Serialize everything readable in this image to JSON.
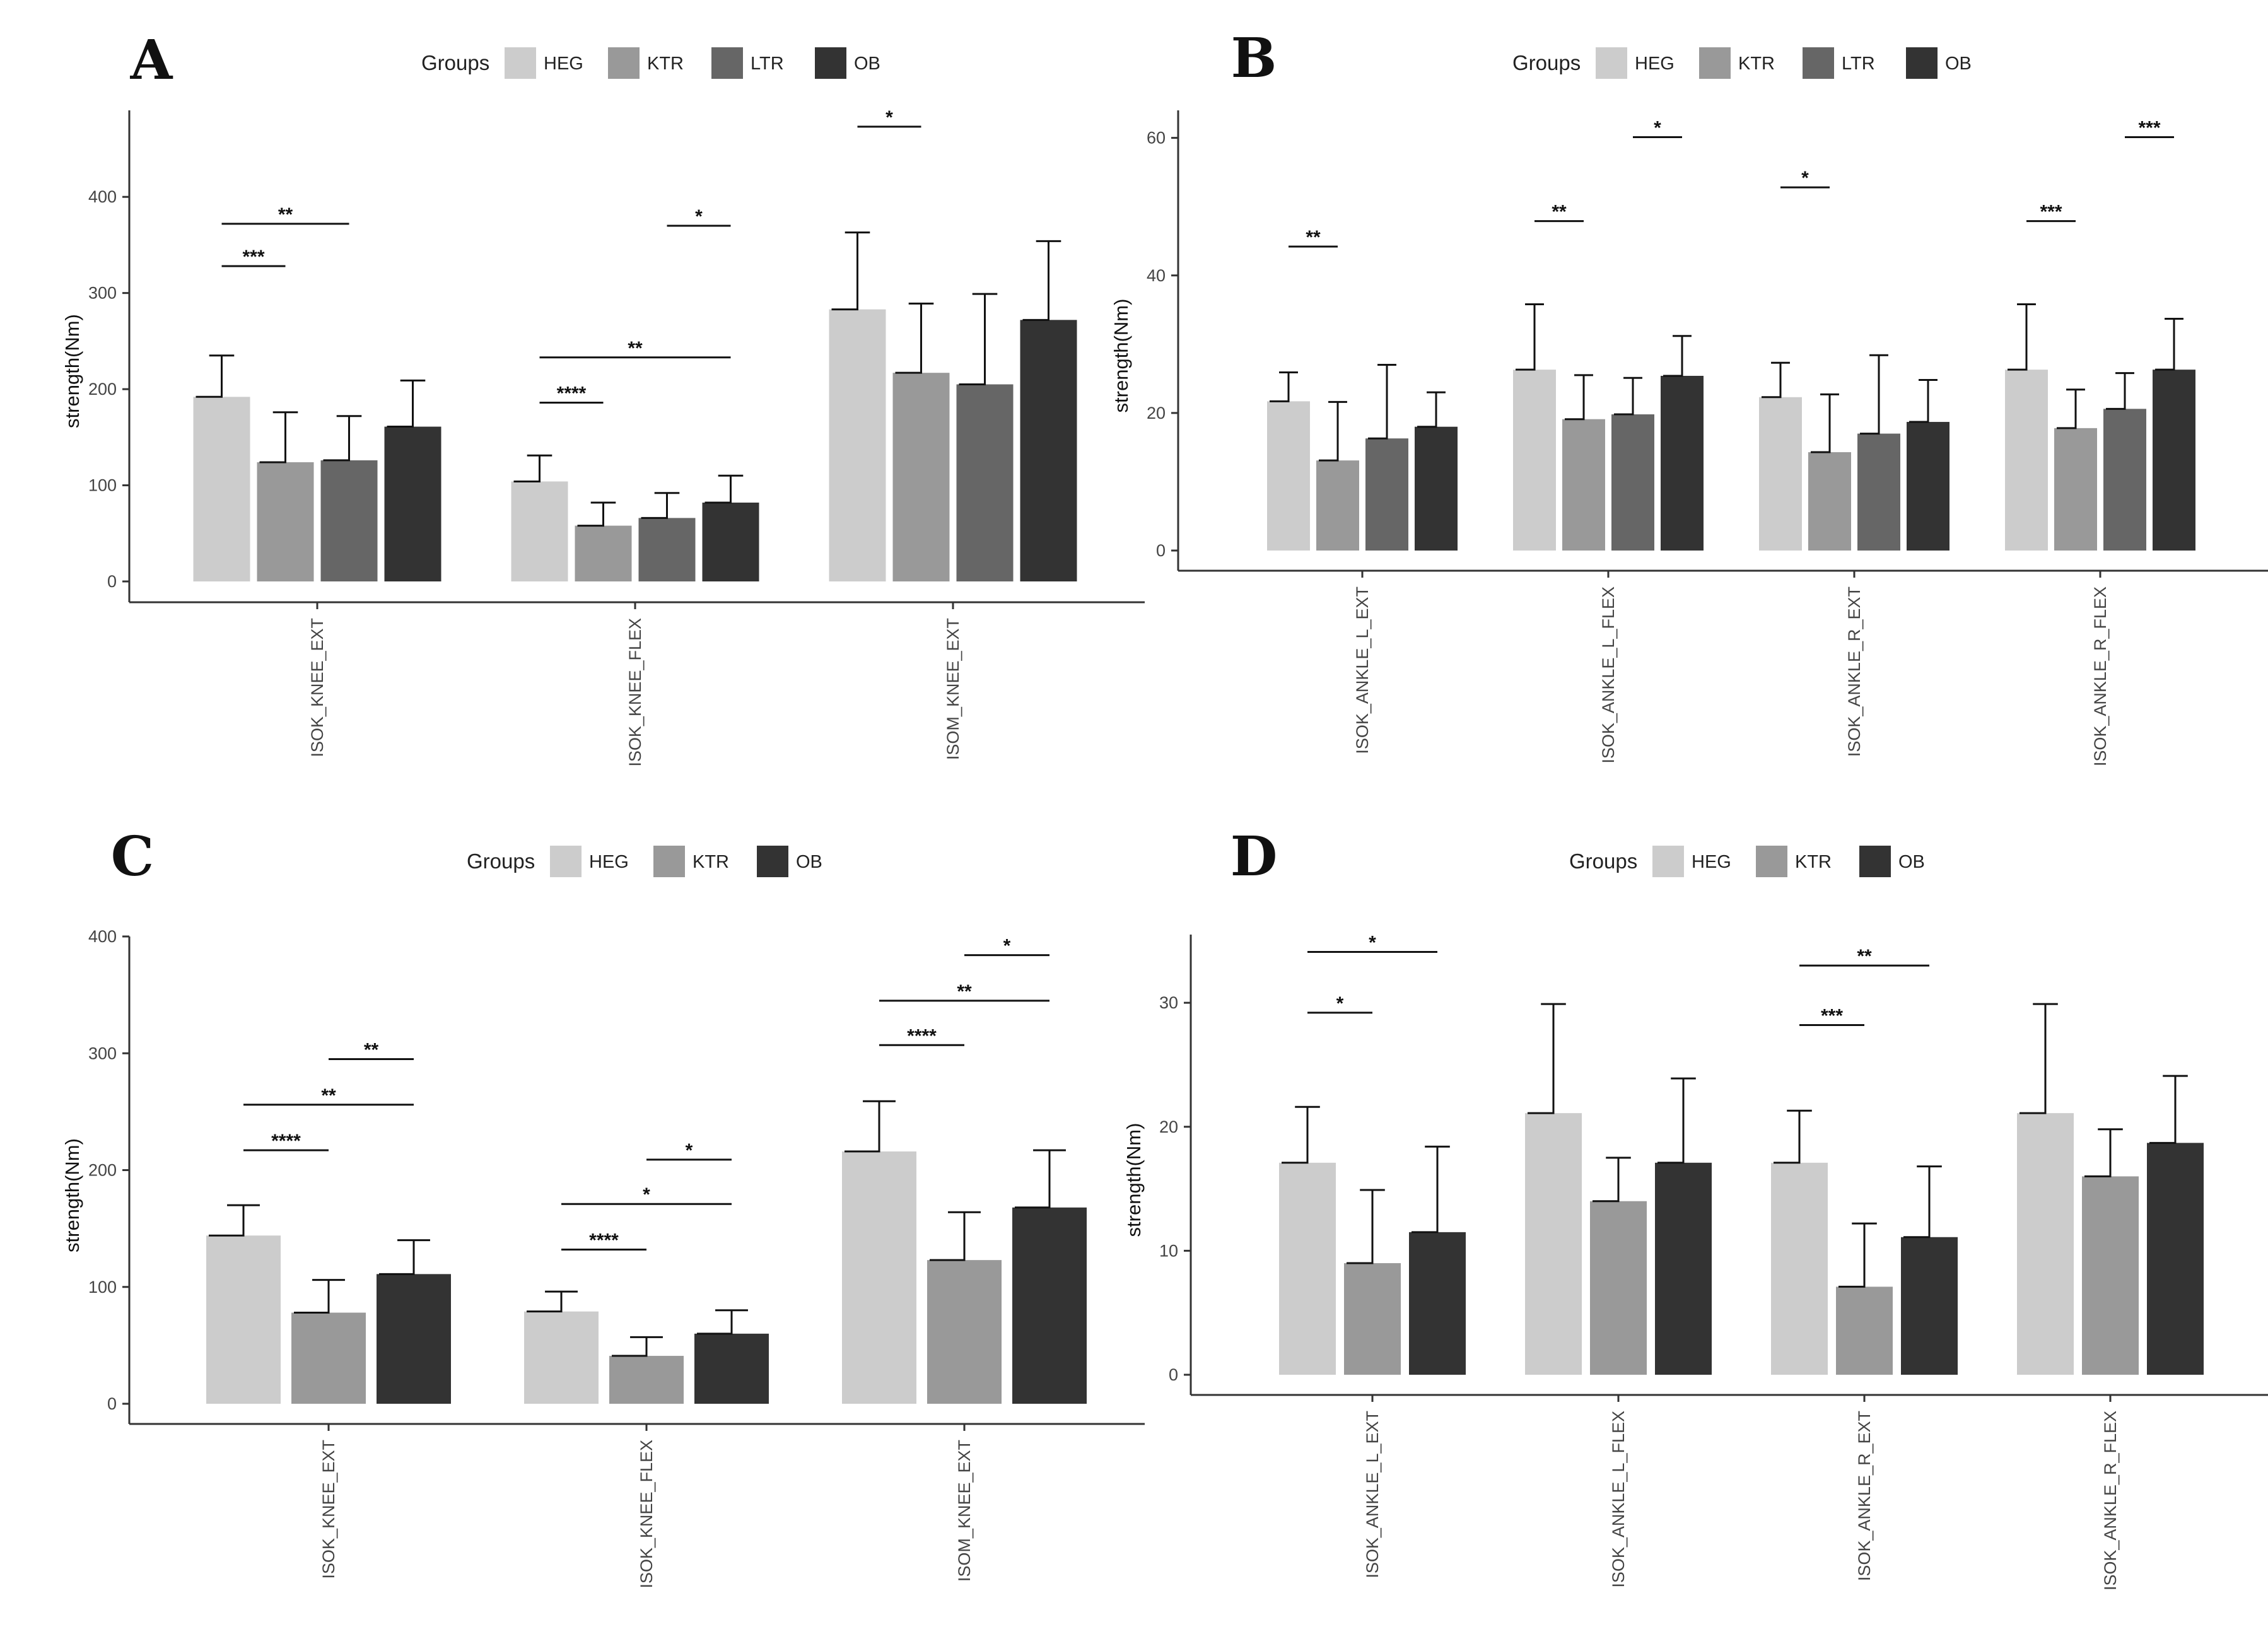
{
  "colors": {
    "HEG": "#cccccc",
    "KTR": "#999999",
    "LTR": "#666666",
    "OB": "#333333"
  },
  "chart_data": [
    {
      "panel": "A",
      "type": "bar",
      "legend_title": "Groups",
      "legend_position": "top",
      "groups": [
        "HEG",
        "KTR",
        "LTR",
        "OB"
      ],
      "categories": [
        "ISOK_KNEE_EXT",
        "ISOK_KNEE_FLEX",
        "ISOM_KNEE_EXT"
      ],
      "ylabel": "strength(Nm)",
      "xlabel": "",
      "ylim": [
        0,
        490
      ],
      "yticks": [
        0,
        100,
        200,
        300,
        400
      ],
      "series": [
        {
          "name": "HEG",
          "values": [
            192,
            104,
            283
          ],
          "errors": [
            43,
            27,
            80
          ]
        },
        {
          "name": "KTR",
          "values": [
            124,
            58,
            217
          ],
          "errors": [
            52,
            24,
            72
          ]
        },
        {
          "name": "LTR",
          "values": [
            126,
            66,
            205
          ],
          "errors": [
            46,
            26,
            94
          ]
        },
        {
          "name": "OB",
          "values": [
            161,
            82,
            272
          ],
          "errors": [
            48,
            28,
            82
          ]
        }
      ],
      "significance": [
        {
          "category": 0,
          "from": "HEG",
          "to": "KTR",
          "y": 328,
          "label": "***"
        },
        {
          "category": 0,
          "from": "HEG",
          "to": "LTR",
          "y": 372,
          "label": "**"
        },
        {
          "category": 1,
          "from": "HEG",
          "to": "KTR",
          "y": 186,
          "label": "****"
        },
        {
          "category": 1,
          "from": "HEG",
          "to": "OB",
          "y": 233,
          "label": "**"
        },
        {
          "category": 1,
          "from": "LTR",
          "to": "OB",
          "y": 370,
          "label": "*"
        },
        {
          "category": 2,
          "from": "HEG",
          "to": "KTR",
          "y": 473,
          "label": "*"
        }
      ]
    },
    {
      "panel": "B",
      "type": "bar",
      "legend_title": "Groups",
      "legend_position": "top",
      "groups": [
        "HEG",
        "KTR",
        "LTR",
        "OB"
      ],
      "categories": [
        "ISOK_ANKLE_L_EXT",
        "ISOK_ANKLE_L_FLEX",
        "ISOK_ANKLE_R_EXT",
        "ISOK_ANKLE_R_FLEX"
      ],
      "ylabel": "strength(Nm)",
      "xlabel": "",
      "ylim": [
        0,
        64
      ],
      "yticks": [
        0,
        20,
        40,
        60
      ],
      "series": [
        {
          "name": "HEG",
          "values": [
            21.7,
            26.3,
            22.3,
            26.3
          ],
          "errors": [
            4.2,
            9.5,
            5.0,
            9.5
          ]
        },
        {
          "name": "KTR",
          "values": [
            13.1,
            19.1,
            14.3,
            17.8
          ],
          "errors": [
            8.5,
            6.4,
            8.4,
            5.6
          ]
        },
        {
          "name": "LTR",
          "values": [
            16.3,
            19.8,
            17.0,
            20.6
          ],
          "errors": [
            10.7,
            5.3,
            11.4,
            5.2
          ]
        },
        {
          "name": "OB",
          "values": [
            18.0,
            25.4,
            18.7,
            26.3
          ],
          "errors": [
            5.0,
            5.8,
            6.1,
            7.4
          ]
        }
      ],
      "significance": [
        {
          "category": 0,
          "from": "HEG",
          "to": "KTR",
          "y": 44.2,
          "label": "**"
        },
        {
          "category": 1,
          "from": "HEG",
          "to": "KTR",
          "y": 47.9,
          "label": "**"
        },
        {
          "category": 1,
          "from": "LTR",
          "to": "OB",
          "y": 60.1,
          "label": "*"
        },
        {
          "category": 2,
          "from": "HEG",
          "to": "KTR",
          "y": 52.8,
          "label": "*"
        },
        {
          "category": 3,
          "from": "HEG",
          "to": "KTR",
          "y": 47.9,
          "label": "***"
        },
        {
          "category": 3,
          "from": "LTR",
          "to": "OB",
          "y": 60.1,
          "label": "***"
        }
      ]
    },
    {
      "panel": "C",
      "type": "bar",
      "legend_title": "Groups",
      "legend_position": "top",
      "groups": [
        "HEG",
        "KTR",
        "OB"
      ],
      "categories": [
        "ISOK_KNEE_EXT",
        "ISOK_KNEE_FLEX",
        "ISOM_KNEE_EXT"
      ],
      "ylabel": "strength(Nm)",
      "xlabel": "",
      "ylim": [
        0,
        400
      ],
      "yticks": [
        0,
        100,
        200,
        300,
        400
      ],
      "series": [
        {
          "name": "HEG",
          "values": [
            144,
            79,
            216
          ],
          "errors": [
            26,
            17,
            43
          ]
        },
        {
          "name": "KTR",
          "values": [
            78,
            41,
            123
          ],
          "errors": [
            28,
            16,
            41
          ]
        },
        {
          "name": "OB",
          "values": [
            111,
            60,
            168
          ],
          "errors": [
            29,
            20,
            49
          ]
        }
      ],
      "significance": [
        {
          "category": 0,
          "from": "HEG",
          "to": "KTR",
          "y": 217,
          "label": "****"
        },
        {
          "category": 0,
          "from": "HEG",
          "to": "OB",
          "y": 256,
          "label": "**"
        },
        {
          "category": 0,
          "from": "KTR",
          "to": "OB",
          "y": 295,
          "label": "**"
        },
        {
          "category": 1,
          "from": "HEG",
          "to": "KTR",
          "y": 132,
          "label": "****"
        },
        {
          "category": 1,
          "from": "HEG",
          "to": "OB",
          "y": 171,
          "label": "*"
        },
        {
          "category": 1,
          "from": "KTR",
          "to": "OB",
          "y": 209,
          "label": "*"
        },
        {
          "category": 2,
          "from": "HEG",
          "to": "KTR",
          "y": 307,
          "label": "****"
        },
        {
          "category": 2,
          "from": "HEG",
          "to": "OB",
          "y": 345,
          "label": "**"
        },
        {
          "category": 2,
          "from": "KTR",
          "to": "OB",
          "y": 384,
          "label": "*"
        }
      ]
    },
    {
      "panel": "D",
      "type": "bar",
      "legend_title": "Groups",
      "legend_position": "top",
      "groups": [
        "HEG",
        "KTR",
        "OB"
      ],
      "categories": [
        "ISOK_ANKLE_L_EXT",
        "ISOK_ANKLE_L_FLEX",
        "ISOK_ANKLE_R_EXT",
        "ISOK_ANKLE_R_FLEX"
      ],
      "ylabel": "strength(Nm)",
      "xlabel": "",
      "ylim": [
        0,
        35.5
      ],
      "yticks": [
        0,
        10,
        20,
        30
      ],
      "series": [
        {
          "name": "HEG",
          "values": [
            17.1,
            21.1,
            17.1,
            21.1
          ],
          "errors": [
            4.5,
            8.8,
            4.2,
            8.8
          ]
        },
        {
          "name": "KTR",
          "values": [
            9.0,
            14.0,
            7.1,
            16.0
          ],
          "errors": [
            5.9,
            3.5,
            5.1,
            3.8
          ]
        },
        {
          "name": "OB",
          "values": [
            11.5,
            17.1,
            11.1,
            18.7
          ],
          "errors": [
            6.9,
            6.8,
            5.7,
            5.4
          ]
        }
      ],
      "significance": [
        {
          "category": 0,
          "from": "HEG",
          "to": "KTR",
          "y": 29.2,
          "label": "*"
        },
        {
          "category": 0,
          "from": "HEG",
          "to": "OB",
          "y": 34.1,
          "label": "*"
        },
        {
          "category": 2,
          "from": "HEG",
          "to": "KTR",
          "y": 28.2,
          "label": "***"
        },
        {
          "category": 2,
          "from": "HEG",
          "to": "OB",
          "y": 33.0,
          "label": "**"
        }
      ]
    }
  ]
}
